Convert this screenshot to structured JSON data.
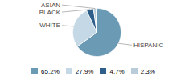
{
  "chart_data": {
    "type": "pie",
    "categories": [
      "HISPANIC",
      "WHITE",
      "BLACK",
      "ASIAN"
    ],
    "values": [
      65.2,
      27.9,
      4.7,
      2.3
    ],
    "value_labels": [
      "65.2%",
      "27.9%",
      "4.7%",
      "2.3%"
    ],
    "colors": [
      "#6b9ab5",
      "#c4d8e6",
      "#2d5f8a",
      "#b8cdd9"
    ],
    "legend": "bottom"
  }
}
